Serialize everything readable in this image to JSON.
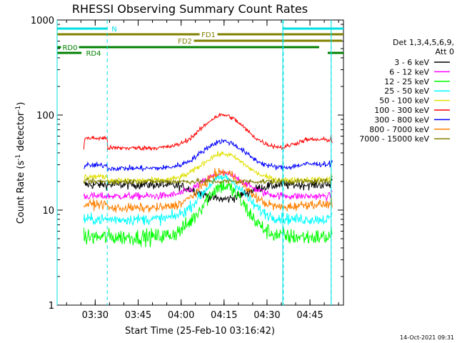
{
  "chart_data": {
    "type": "line",
    "title": "RHESSI Observing Summary Count Rates",
    "xlabel": "Start Time (25-Feb-10 03:16:42)",
    "ylabel_main": "Count Rate (s",
    "ylabel_sup1": "-1",
    "ylabel_mid": " detector",
    "ylabel_sup2": "-1",
    "ylabel_end": ")",
    "yscale": "log",
    "ylim": [
      1,
      1000
    ],
    "xlim_minutes": [
      0,
      100
    ],
    "x_ticks": [
      {
        "label": "03:30",
        "min": 13.3
      },
      {
        "label": "03:45",
        "min": 28.3
      },
      {
        "label": "04:00",
        "min": 43.3
      },
      {
        "label": "04:15",
        "min": 58.3
      },
      {
        "label": "04:30",
        "min": 73.3
      },
      {
        "label": "04:45",
        "min": 88.3
      }
    ],
    "y_ticks": [
      {
        "label": "1",
        "value": 1
      },
      {
        "label": "10",
        "value": 10
      },
      {
        "label": "100",
        "value": 100
      },
      {
        "label": "1000",
        "value": 1000
      }
    ],
    "legend_header": [
      "Det 1,3,4,5,6,9,",
      "Att 0"
    ],
    "series": [
      {
        "name": "3 - 6 keV",
        "color": "#000000",
        "base": 18.5,
        "peak": 13,
        "noise": 0.05,
        "bumpLow": 0,
        "bumpHigh": 0
      },
      {
        "name": "6 - 12 keV",
        "color": "#ff00ff",
        "base": 14,
        "peak": 24,
        "noise": 0.04,
        "bumpLow": 0,
        "bumpHigh": 0
      },
      {
        "name": "12 - 25 keV",
        "color": "#00ff00",
        "base": 5.2,
        "peak": 18,
        "noise": 0.09,
        "bumpLow": 0,
        "bumpHigh": 0
      },
      {
        "name": "25 - 50 keV",
        "color": "#00ffff",
        "base": 8,
        "peak": 22,
        "noise": 0.06,
        "bumpLow": 0,
        "bumpHigh": 0
      },
      {
        "name": "50 - 100 keV",
        "color": "#e0e000",
        "base": 20.5,
        "peak": 39,
        "noise": 0.03,
        "bumpLow": 2,
        "bumpHigh": 0.5
      },
      {
        "name": "100 - 300 keV",
        "color": "#ff0000",
        "base": 45,
        "peak": 100,
        "noise": 0.025,
        "bumpLow": 12,
        "bumpHigh": 10
      },
      {
        "name": "300 - 800 keV",
        "color": "#0000ff",
        "base": 27.5,
        "peak": 53,
        "noise": 0.03,
        "bumpLow": 2,
        "bumpHigh": 3
      },
      {
        "name": "800 - 7000 keV",
        "color": "#ff8000",
        "base": 10.5,
        "peak": 25,
        "noise": 0.05,
        "bumpLow": 1,
        "bumpHigh": 1
      },
      {
        "name": "7000 - 15000 keV",
        "color": "#808000",
        "base": 20,
        "peak": 20,
        "noise": 0.03,
        "bumpLow": 0,
        "bumpHigh": 0
      }
    ],
    "flags": [
      {
        "label": "N",
        "color": "#00e0e0",
        "segments": [
          [
            0,
            17.5
          ],
          [
            79,
            100
          ]
        ]
      },
      {
        "label": "FD1",
        "color": "#808000",
        "segments": [
          [
            0,
            100
          ]
        ]
      },
      {
        "label": "FD2",
        "color": "#808000",
        "segments": [
          [
            47.5,
            99.5
          ]
        ]
      },
      {
        "label": "RD0",
        "color": "#008000",
        "segments": [
          [
            0,
            91.5
          ]
        ]
      },
      {
        "label": "RD4",
        "color": "#008000",
        "segments": [
          [
            0,
            8.5
          ],
          [
            94.5,
            100
          ]
        ]
      }
    ],
    "night_markers_min": [
      17.5,
      79
    ],
    "saa_markers_min": [
      0,
      78.8,
      95.7
    ]
  },
  "timestamp": "14-Oct-2021 09:31"
}
